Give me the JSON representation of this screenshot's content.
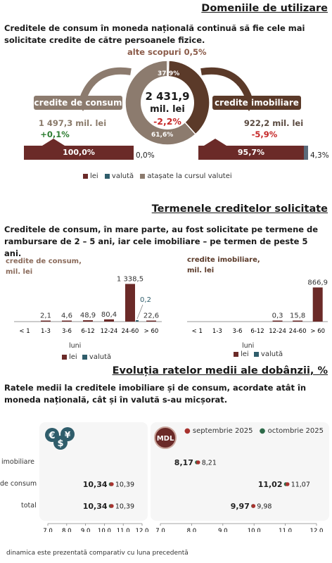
{
  "section1": {
    "title": "Domeniile de utilizare",
    "intro": "Creditele de consum în moneda națională continuă să fie cele mai solicitate credite de către persoanele fizice.",
    "other_label": "alte scopuri 0,5%",
    "total_value": "2 431,9",
    "total_unit": "mil. lei",
    "total_change": "-2,2%",
    "consumer": {
      "label": "credite de consum",
      "amount": "1 497,3 mil. lei",
      "change": "+0,1%",
      "bar_left": "100,0%",
      "bar_right": "0,0%"
    },
    "mortgage": {
      "label": "credite imobiliare",
      "amount": "922,2 mil. lei",
      "change": "-5,9%",
      "bar_left": "95,7%",
      "bar_right": "4,3%"
    },
    "legend": [
      "lei",
      "valută",
      "atașate la cursul valutei"
    ]
  },
  "section2": {
    "title": "Termenele creditelor solicitate",
    "intro": "Creditele de consum, în mare parte, au fost solicitate pe termene de rambursare de  2 – 5 ani, iar cele imobiliare – pe termen de peste 5 ani.",
    "axis_title": "luni",
    "legend": [
      "lei",
      "valută"
    ]
  },
  "section3": {
    "title": "Evoluția ratelor medii ale dobânzii, %",
    "intro": "Ratele medii la creditele imobiliare și de consum, acordate atât în moneda națională, cât și în valută s-au micșorat.",
    "row_labels": [
      "imobiliare",
      "de consum",
      "total"
    ],
    "badge_right": "MDL",
    "legend": [
      "septembrie 2025",
      "octombrie 2025"
    ],
    "footnote": "dinamica este prezentată comparativ cu luna precedentă"
  },
  "chart_data": [
    {
      "type": "pie",
      "title": "",
      "categories": [
        "credite de consum",
        "credite imobiliare",
        "alte scopuri"
      ],
      "values": [
        61.6,
        37.9,
        0.5
      ],
      "labels": [
        "61,6%",
        "37,9%",
        "alte scopuri 0,5%"
      ],
      "colors": [
        "#8c7b6e",
        "#5b3a29",
        "#a39487"
      ]
    },
    {
      "type": "bar",
      "title": "credite de consum, mil. lei",
      "categories": [
        "< 1",
        "1-3",
        "3-6",
        "6-12",
        "12-24",
        "24-60",
        "> 60"
      ],
      "series": [
        {
          "name": "lei",
          "values": [
            0,
            2.1,
            4.6,
            48.9,
            80.4,
            1338.5,
            22.6
          ],
          "labels": [
            "",
            "2,1",
            "4,6",
            "48,9",
            "80,4",
            "1 338,5",
            "22,6"
          ],
          "color": "#6b2a28"
        },
        {
          "name": "valută",
          "values": [
            0,
            0,
            0,
            0,
            0,
            0.2,
            0
          ],
          "labels": [
            "",
            "",
            "",
            "",
            "",
            "0,2",
            ""
          ],
          "color": "#2f5d6b"
        }
      ],
      "xlabel": "luni",
      "ylim": [
        0,
        1400
      ]
    },
    {
      "type": "bar",
      "title": "credite imobiliare, mil. lei",
      "categories": [
        "< 1",
        "1-3",
        "3-6",
        "6-12",
        "12-24",
        "24-60",
        "> 60"
      ],
      "series": [
        {
          "name": "lei",
          "values": [
            0,
            0,
            0,
            0,
            0.3,
            15.8,
            866.9
          ],
          "labels": [
            "",
            "",
            "",
            "",
            "0,3",
            "15,8",
            "866,9"
          ],
          "color": "#6b2a28"
        },
        {
          "name": "valută",
          "values": [
            0,
            0,
            0,
            0,
            0,
            0,
            0
          ],
          "labels": [
            "",
            "",
            "",
            "",
            "",
            "",
            ""
          ],
          "color": "#2f5d6b"
        }
      ],
      "xlabel": "luni",
      "ylim": [
        0,
        1000
      ]
    },
    {
      "type": "scatter",
      "title": "",
      "categories": [
        "imobiliare",
        "de consum",
        "total"
      ],
      "series": [
        {
          "name": "septembrie 2025",
          "values": [
            null,
            10.39,
            10.39
          ],
          "labels": [
            "",
            "10,39",
            "10,39"
          ],
          "color": "#a8322e"
        },
        {
          "name": "octombrie 2025",
          "values": [
            null,
            10.34,
            10.34
          ],
          "labels": [
            "",
            "10,34",
            "10,34"
          ],
          "color": "#2e6b4a"
        }
      ],
      "xlim": [
        7.0,
        12.0
      ],
      "xticks": [
        "7,0",
        "8,0",
        "9,0",
        "10,0",
        "11,0",
        "12,0"
      ]
    },
    {
      "type": "scatter",
      "title": "MDL",
      "categories": [
        "imobiliare",
        "de consum",
        "total"
      ],
      "series": [
        {
          "name": "septembrie 2025",
          "values": [
            8.21,
            11.07,
            9.98
          ],
          "labels": [
            "8,21",
            "11,07",
            "9,98"
          ],
          "color": "#a8322e"
        },
        {
          "name": "octombrie 2025",
          "values": [
            8.17,
            11.02,
            9.97
          ],
          "labels": [
            "8,17",
            "11,02",
            "9,97"
          ],
          "color": "#2e6b4a"
        }
      ],
      "xlim": [
        7.0,
        12.0
      ],
      "xticks": [
        "7,0",
        "8,0",
        "9,0",
        "10,0",
        "11,0",
        "12,0"
      ]
    }
  ]
}
